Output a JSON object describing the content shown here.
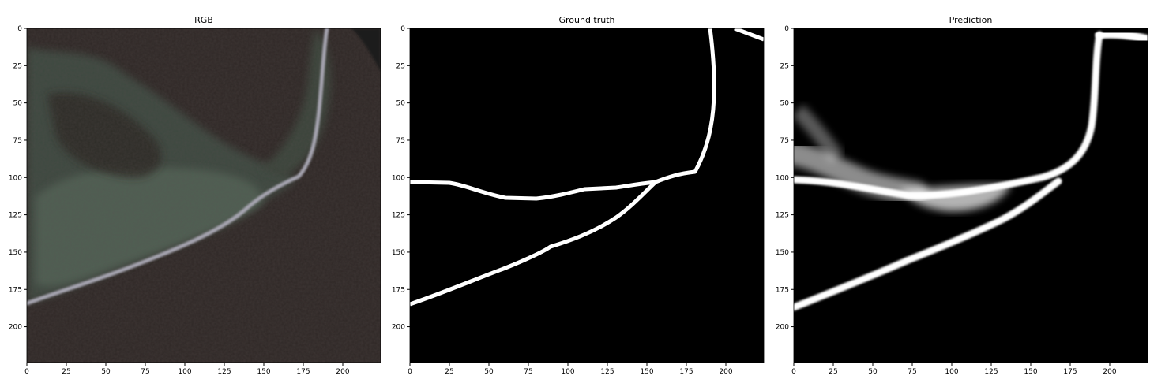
{
  "figure": {
    "panels": [
      {
        "title": "RGB",
        "kind": "rgb",
        "image_extent": 224,
        "x_ticks": [
          0,
          25,
          50,
          75,
          100,
          125,
          150,
          175,
          200
        ],
        "y_ticks": [
          0,
          25,
          50,
          75,
          100,
          125,
          150,
          175,
          200
        ]
      },
      {
        "title": "Ground truth",
        "kind": "mask",
        "image_extent": 224,
        "x_ticks": [
          0,
          25,
          50,
          75,
          100,
          125,
          150,
          175,
          200
        ],
        "y_ticks": [
          0,
          25,
          50,
          75,
          100,
          125,
          150,
          175,
          200
        ]
      },
      {
        "title": "Prediction",
        "kind": "prediction",
        "image_extent": 224,
        "x_ticks": [
          0,
          25,
          50,
          75,
          100,
          125,
          150,
          175,
          200
        ],
        "y_ticks": [
          0,
          25,
          50,
          75,
          100,
          125,
          150,
          175,
          200
        ]
      }
    ],
    "colors": {
      "forest_dark": "#2b2423",
      "meadow": "#4a5a4c",
      "road_rgb": "#a9a6b3",
      "mask_bg": "#000000",
      "mask_fg": "#ffffff"
    }
  }
}
